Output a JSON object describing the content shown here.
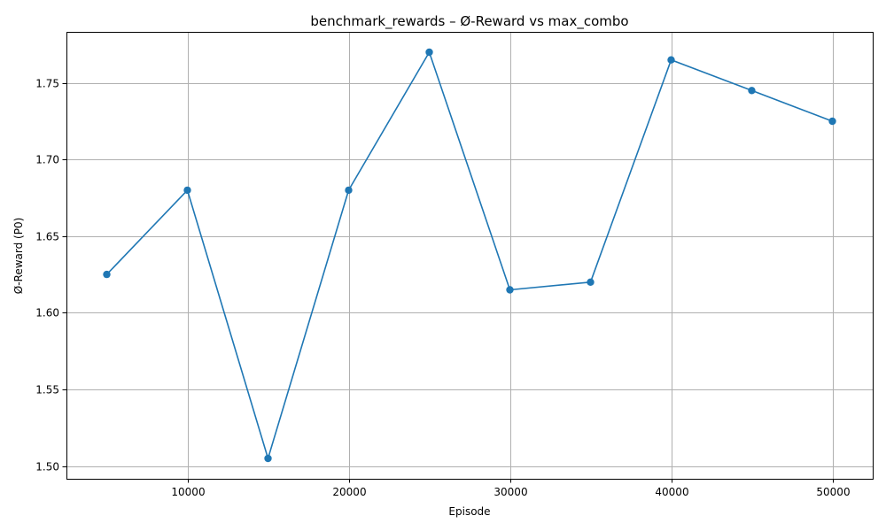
{
  "chart_data": {
    "type": "line",
    "title": "benchmark_rewards – Ø-Reward vs max_combo",
    "xlabel": "Episode",
    "ylabel": "Ø-Reward (P0)",
    "xlim": [
      2500,
      52500
    ],
    "ylim": [
      1.4917,
      1.7833
    ],
    "x_ticks": [
      10000,
      20000,
      30000,
      40000,
      50000
    ],
    "x_tick_labels": [
      "10000",
      "20000",
      "30000",
      "40000",
      "50000"
    ],
    "y_ticks": [
      1.5,
      1.55,
      1.6,
      1.65,
      1.7,
      1.75
    ],
    "y_tick_labels": [
      "1.50",
      "1.55",
      "1.60",
      "1.65",
      "1.70",
      "1.75"
    ],
    "grid": true,
    "marker": "circle",
    "colors": {
      "series": "#1f77b4"
    },
    "series": [
      {
        "x": [
          5000,
          10000,
          15000,
          20000,
          25000,
          30000,
          35000,
          40000,
          45000,
          50000
        ],
        "values": [
          1.625,
          1.68,
          1.505,
          1.68,
          1.77,
          1.615,
          1.62,
          1.765,
          1.745,
          1.725
        ]
      }
    ]
  }
}
